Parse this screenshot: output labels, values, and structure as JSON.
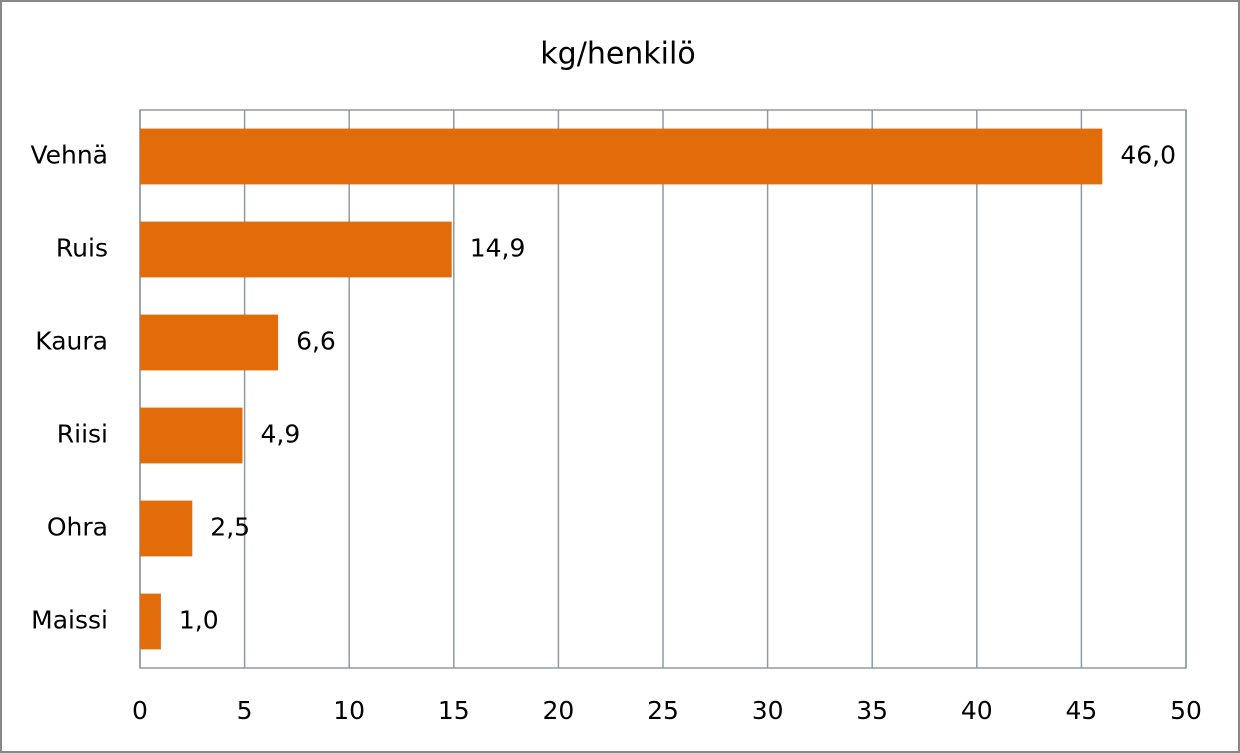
{
  "chart_data": {
    "type": "bar",
    "orientation": "horizontal",
    "title": "kg/henkilö",
    "categories": [
      "Vehnä",
      "Ruis",
      "Kaura",
      "Riisi",
      "Ohra",
      "Maissi"
    ],
    "values": [
      46.0,
      14.9,
      6.6,
      4.9,
      2.5,
      1.0
    ],
    "value_labels": [
      "46,0",
      "14,9",
      "6,6",
      "4,9",
      "2,5",
      "1,0"
    ],
    "color": "#e36c0a",
    "xlim": [
      0,
      50
    ],
    "xticks": [
      0,
      5,
      10,
      15,
      20,
      25,
      30,
      35,
      40,
      45,
      50
    ],
    "grid": true
  }
}
